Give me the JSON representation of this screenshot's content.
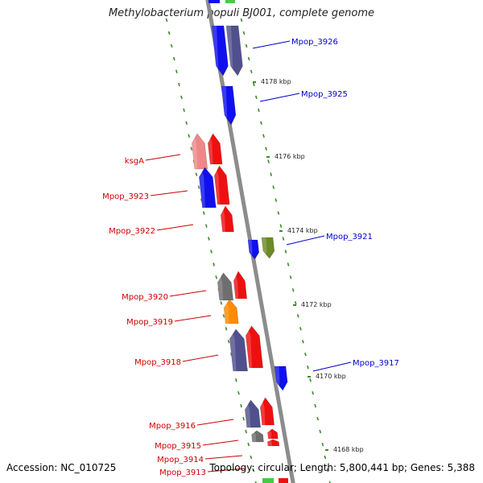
{
  "title": "Methylobacterium populi BJ001, complete genome",
  "accession": "Accession: NC_010725",
  "summary": "Topology: circular; Length: 5,800,441 bp; Genes: 5,388",
  "colors": {
    "backbone": "#8c8c8c",
    "tick": "#3a8a2a",
    "label_forward": "#0000cc",
    "label_reverse": "#cc0000"
  },
  "kbp_ticks": [
    "4178 kbp",
    "4176 kbp",
    "4174 kbp",
    "4172 kbp",
    "4170 kbp",
    "4168 kbp"
  ],
  "gene_labels": {
    "forward": [
      "Mpop_3926",
      "Mpop_3925",
      "Mpop_3921",
      "Mpop_3917"
    ],
    "reverse": [
      "ksgA",
      "Mpop_3923",
      "Mpop_3922",
      "Mpop_3920",
      "Mpop_3919",
      "Mpop_3918",
      "Mpop_3916",
      "Mpop_3915",
      "Mpop_3914",
      "Mpop_3913"
    ]
  },
  "genes": [
    {
      "color": "#1010ee",
      "strand": "forward"
    },
    {
      "color": "#50508e",
      "strand": "forward"
    },
    {
      "color": "#1010ee",
      "strand": "forward"
    },
    {
      "color": "#1010ee",
      "strand": "forward"
    },
    {
      "color": "#6d8a25",
      "strand": "forward"
    },
    {
      "color": "#1010ee",
      "strand": "forward"
    },
    {
      "color": "#ee8888",
      "strand": "reverse"
    },
    {
      "color": "#ee1010",
      "strand": "reverse"
    },
    {
      "color": "#1010ee",
      "strand": "reverse"
    },
    {
      "color": "#ee1010",
      "strand": "reverse"
    },
    {
      "color": "#ee1010",
      "strand": "reverse"
    },
    {
      "color": "#6e6e6e",
      "strand": "reverse"
    },
    {
      "color": "#ee1010",
      "strand": "reverse"
    },
    {
      "color": "#ff8c00",
      "strand": "reverse"
    },
    {
      "color": "#50508e",
      "strand": "reverse"
    },
    {
      "color": "#ee1010",
      "strand": "reverse"
    },
    {
      "color": "#50508e",
      "strand": "reverse"
    },
    {
      "color": "#ee1010",
      "strand": "reverse"
    },
    {
      "color": "#6e6e6e",
      "strand": "reverse"
    },
    {
      "color": "#ee1010",
      "strand": "reverse"
    },
    {
      "color": "#ee1010",
      "strand": "reverse"
    }
  ]
}
